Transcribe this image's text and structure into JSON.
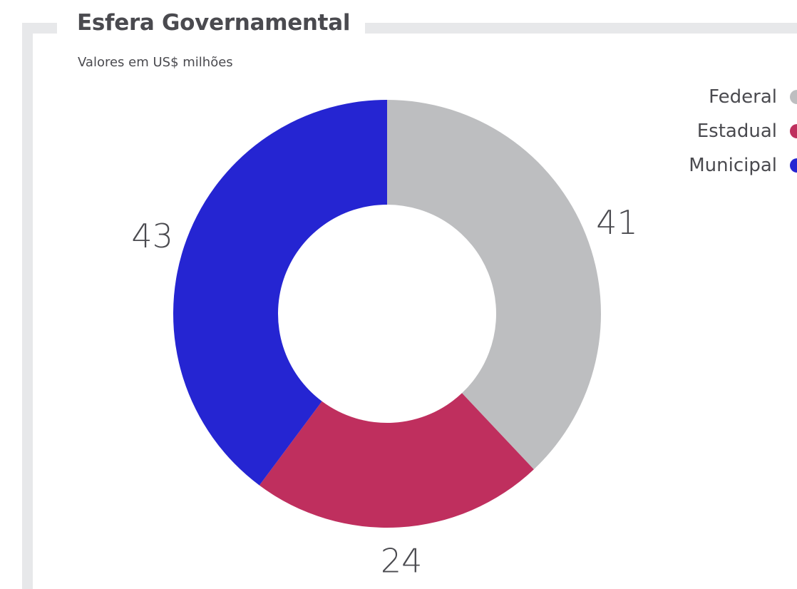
{
  "header": {
    "title": "Esfera Governamental",
    "subtitle": "Valores em US$ milhões"
  },
  "legend": {
    "items": [
      {
        "label": "Federal",
        "color": "#bdbec0"
      },
      {
        "label": "Estadual",
        "color": "#bf2f5e"
      },
      {
        "label": "Municipal",
        "color": "#2525d2"
      }
    ]
  },
  "chart_data": {
    "type": "pie",
    "variant": "donut",
    "title": "Esfera Governamental",
    "subtitle": "Valores em US$ milhões",
    "categories": [
      "Federal",
      "Estadual",
      "Municipal"
    ],
    "values": [
      41,
      24,
      43
    ],
    "colors": [
      "#bdbec0",
      "#bf2f5e",
      "#2525d2"
    ],
    "value_labels": [
      "41",
      "24",
      "43"
    ],
    "legend_position": "top-right",
    "start_angle_deg": 0
  }
}
